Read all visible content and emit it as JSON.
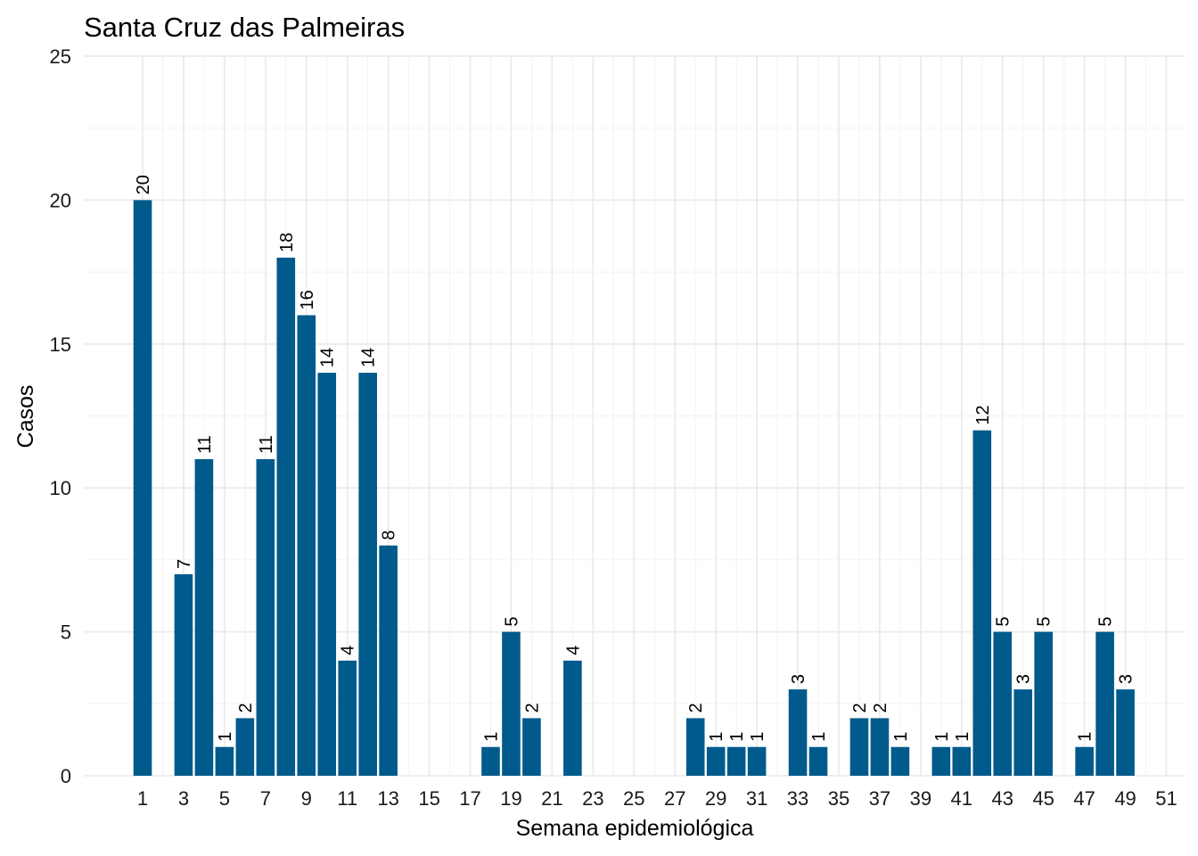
{
  "chart_data": {
    "type": "bar",
    "title": "Santa Cruz das Palmeiras",
    "xlabel": "Semana epidemiológica",
    "ylabel": "Casos",
    "ylim": [
      0,
      25
    ],
    "yticks": [
      0,
      5,
      10,
      15,
      20,
      25
    ],
    "xlim": [
      1,
      51
    ],
    "xticks": [
      1,
      3,
      5,
      7,
      9,
      11,
      13,
      15,
      17,
      19,
      21,
      23,
      25,
      27,
      29,
      31,
      33,
      35,
      37,
      39,
      41,
      43,
      45,
      47,
      49,
      51
    ],
    "grid": true,
    "legend": "none",
    "bar_color": "#005a8c",
    "x": [
      1,
      3,
      4,
      5,
      6,
      7,
      8,
      9,
      10,
      11,
      12,
      13,
      18,
      19,
      20,
      22,
      28,
      29,
      30,
      31,
      33,
      34,
      36,
      37,
      38,
      40,
      41,
      42,
      43,
      44,
      45,
      47,
      48,
      49
    ],
    "values": [
      20,
      7,
      11,
      1,
      2,
      11,
      18,
      16,
      14,
      4,
      14,
      8,
      1,
      5,
      2,
      4,
      2,
      1,
      1,
      1,
      3,
      1,
      2,
      2,
      1,
      1,
      1,
      12,
      5,
      3,
      5,
      1,
      5,
      3
    ]
  }
}
